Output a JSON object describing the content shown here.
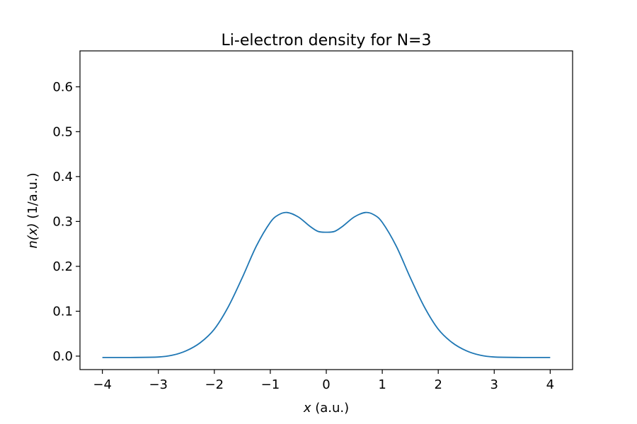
{
  "chart_data": {
    "type": "line",
    "title": "Li-electron density for N=3",
    "xlabel_var": "x",
    "xlabel_unit": " (a.u.)",
    "ylabel_var": "n(x)",
    "ylabel_unit": " (1/a.u.)",
    "xlim": [
      -4.4,
      4.4
    ],
    "ylim": [
      -0.03,
      0.68
    ],
    "xticks": [
      -4,
      -3,
      -2,
      -1,
      0,
      1,
      2,
      3,
      4
    ],
    "xtick_labels": [
      "−4",
      "−3",
      "−2",
      "−1",
      "0",
      "1",
      "2",
      "3",
      "4"
    ],
    "yticks": [
      0.0,
      0.1,
      0.2,
      0.3,
      0.4,
      0.5,
      0.6
    ],
    "ytick_labels": [
      "0.0",
      "0.1",
      "0.2",
      "0.3",
      "0.4",
      "0.5",
      "0.6"
    ],
    "grid": false,
    "line_color": "#1f77b4",
    "series": [
      {
        "x": [
          -4.0,
          -3.5,
          -3.0,
          -2.75,
          -2.5,
          -2.25,
          -2.0,
          -1.75,
          -1.5,
          -1.25,
          -1.0,
          -0.85,
          -0.7,
          -0.5,
          -0.3,
          -0.15,
          0.0,
          0.15,
          0.3,
          0.5,
          0.7,
          0.85,
          1.0,
          1.25,
          1.5,
          1.75,
          2.0,
          2.25,
          2.5,
          2.75,
          3.0,
          3.5,
          4.0
        ],
        "y": [
          -0.003,
          -0.003,
          -0.002,
          0.002,
          0.012,
          0.03,
          0.06,
          0.11,
          0.175,
          0.245,
          0.298,
          0.315,
          0.32,
          0.31,
          0.29,
          0.278,
          0.276,
          0.278,
          0.29,
          0.31,
          0.32,
          0.315,
          0.298,
          0.245,
          0.175,
          0.11,
          0.06,
          0.03,
          0.012,
          0.002,
          -0.002,
          -0.003,
          -0.003
        ]
      }
    ]
  }
}
